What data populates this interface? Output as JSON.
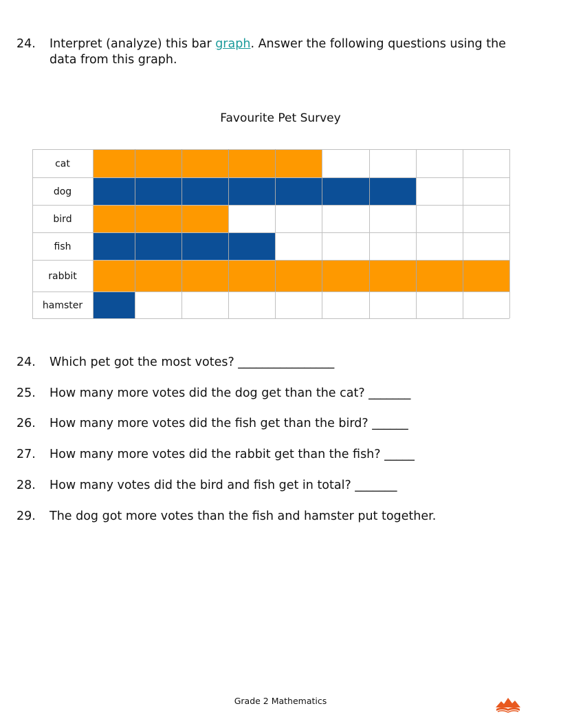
{
  "intro": {
    "number": "24.",
    "text_before": "Interpret (analyze) this bar ",
    "link": "graph",
    "text_after": ".  Answer the following questions using the data from this graph."
  },
  "colors": {
    "orange": "#fe9900",
    "blue": "#0c4f97",
    "grid": "#c0c0c0"
  },
  "chart_data": {
    "type": "bar",
    "orientation": "horizontal",
    "title": "Favourite Pet Survey",
    "categories": [
      "cat",
      "dog",
      "bird",
      "fish",
      "rabbit",
      "hamster"
    ],
    "values": [
      5,
      7,
      3,
      4,
      9,
      1
    ],
    "bar_colors": [
      "orange",
      "blue",
      "orange",
      "blue",
      "orange",
      "blue"
    ],
    "xlim": [
      0,
      9
    ],
    "grid": true,
    "axis_tick_labels": false
  },
  "questions": [
    {
      "number": "24.",
      "text": "Which pet got the most votes? ________________"
    },
    {
      "number": "25.",
      "text": "How many more votes did the dog get than the cat? _______"
    },
    {
      "number": "26.",
      "text": "How many more votes did the fish get than the bird? ______"
    },
    {
      "number": "27.",
      "text": "How many more votes did the rabbit get than the fish? _____"
    },
    {
      "number": "28.",
      "text": "How many votes did the bird and fish get in total? _______"
    },
    {
      "number": "29.",
      "text": "The dog got more votes than the fish and hamster put together."
    }
  ],
  "footer": {
    "text": "Grade 2 Mathematics",
    "logo_icon": "mountain-book-logo-icon"
  }
}
